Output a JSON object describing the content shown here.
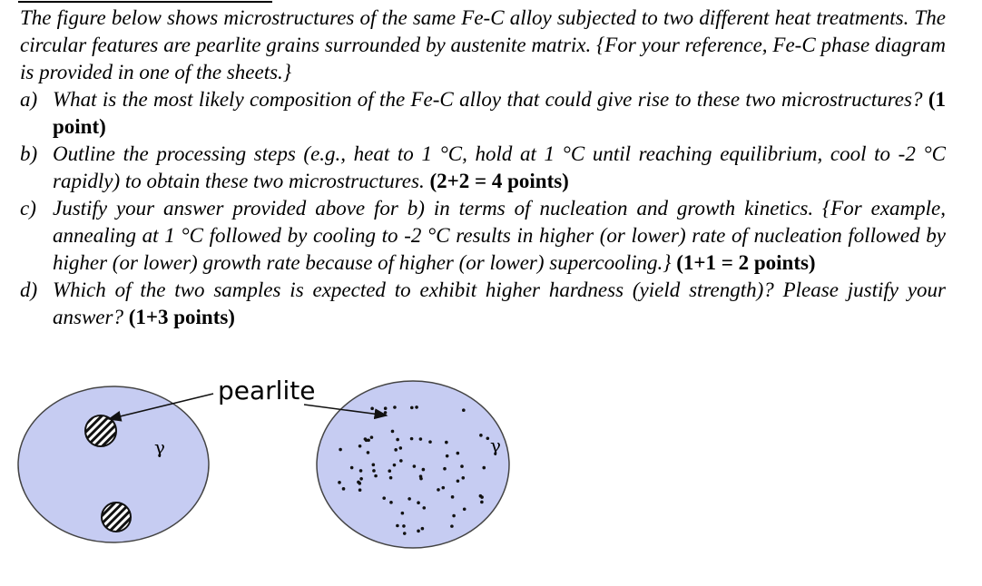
{
  "intro": "The figure below shows microstructures of the same Fe-C alloy subjected to two different heat treatments. The circular features are pearlite grains surrounded by austenite matrix. {For your reference, Fe-C phase diagram is provided in one of the sheets.}",
  "questions": [
    {
      "label": "a)",
      "text": "What is the most likely composition of the Fe-C alloy that could give rise to these two microstructures?",
      "points": "(1 point)"
    },
    {
      "label": "b)",
      "text": "Outline the processing steps (e.g., heat to 1 °C, hold at 1 °C until reaching equilibrium, cool to -2 °C rapidly) to obtain these two microstructures.",
      "points": "(2+2 = 4 points)"
    },
    {
      "label": "c)",
      "text": "Justify your answer provided above for b) in terms of nucleation and growth kinetics. {For example, annealing at 1 °C followed by cooling to -2 °C results in higher (or lower) rate of nucleation followed by higher (or lower) growth rate because of higher (or lower) supercooling.}",
      "points": "(1+1 = 2 points)"
    },
    {
      "label": "d)",
      "text": "Which of the two samples is expected to exhibit higher hardness (yield strength)? Please justify your answer?",
      "points": "(1+3 points)"
    }
  ],
  "figure": {
    "pearlite_label": "pearlite",
    "gamma_left": "γ",
    "gamma_right": "γ"
  }
}
